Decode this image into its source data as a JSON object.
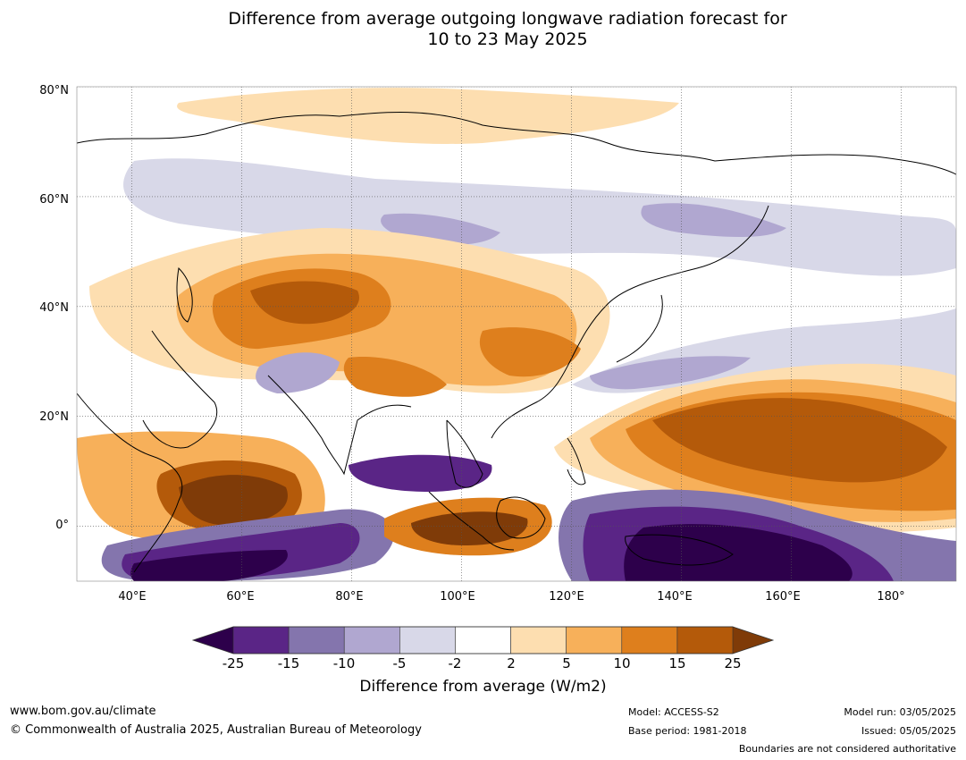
{
  "title": {
    "line1": "Difference from average outgoing longwave radiation forecast for",
    "line2": "10 to 23 May 2025"
  },
  "map": {
    "lat_labels": [
      "80°N",
      "60°N",
      "40°N",
      "20°N",
      "0°"
    ],
    "lon_labels": [
      "40°E",
      "60°E",
      "80°E",
      "100°E",
      "120°E",
      "140°E",
      "160°E",
      "180°"
    ],
    "lon_extent": [
      30,
      190
    ],
    "lat_extent": [
      -10,
      80
    ]
  },
  "colorbar": {
    "ticks": [
      "-25",
      "-15",
      "-10",
      "-5",
      "-2",
      "2",
      "5",
      "10",
      "15",
      "25"
    ],
    "colors": [
      "#5a2586",
      "#8475ad",
      "#b0a7d0",
      "#d8d8e8",
      "#ffffff",
      "#fddeb0",
      "#f7b05a",
      "#de7f1d",
      "#b45a0a"
    ],
    "under_color": "#2d004b",
    "over_color": "#7f3b08",
    "label": "Difference from average (W/m2)"
  },
  "footer": {
    "url": "www.bom.gov.au/climate",
    "copyright": "© Commonwealth of Australia 2025, Australian Bureau of Meteorology",
    "model": "Model: ACCESS-S2",
    "base_period": "Base period: 1981-2018",
    "model_run": "Model run: 03/05/2025",
    "issued": "Issued: 05/05/2025",
    "disclaimer": "Boundaries are not considered authoritative"
  }
}
